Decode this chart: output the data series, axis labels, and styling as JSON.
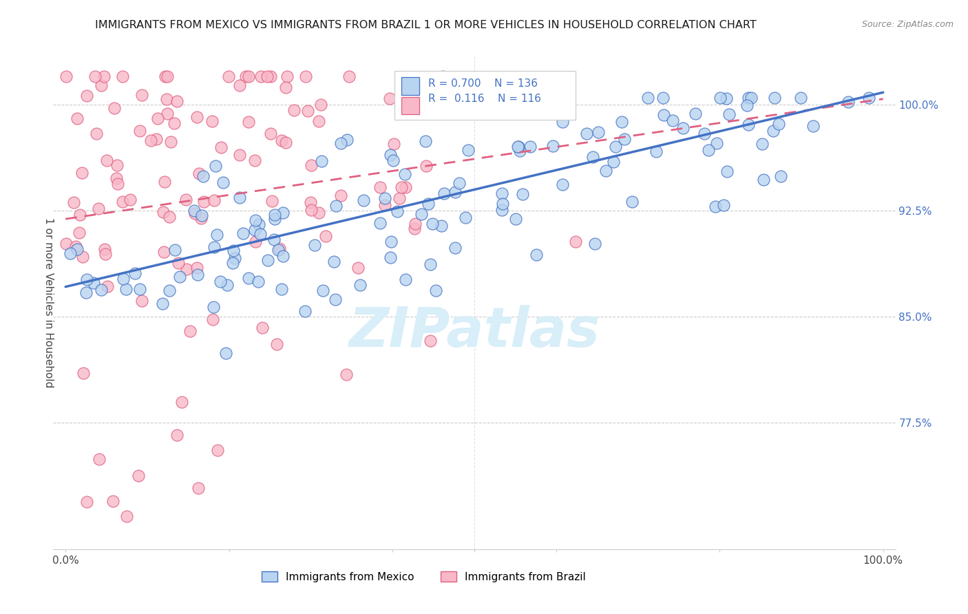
{
  "title": "IMMIGRANTS FROM MEXICO VS IMMIGRANTS FROM BRAZIL 1 OR MORE VEHICLES IN HOUSEHOLD CORRELATION CHART",
  "source": "Source: ZipAtlas.com",
  "ylabel": "1 or more Vehicles in Household",
  "yticks_labels": [
    "100.0%",
    "92.5%",
    "85.0%",
    "77.5%"
  ],
  "yticks_vals": [
    1.0,
    0.925,
    0.85,
    0.775
  ],
  "xlim": [
    -0.015,
    1.015
  ],
  "ylim": [
    0.685,
    1.035
  ],
  "legend_mexico": "Immigrants from Mexico",
  "legend_brazil": "Immigrants from Brazil",
  "R_mexico": "0.700",
  "N_mexico": "136",
  "R_brazil": "0.116",
  "N_brazil": "116",
  "color_mexico_fill": "#b8d4f0",
  "color_mexico_edge": "#4472c4",
  "color_brazil_fill": "#f8b8c8",
  "color_brazil_edge": "#e06080",
  "color_text_blue": "#4472c4",
  "color_grid": "#cccccc",
  "watermark_text": "ZIPatlas",
  "watermark_color": "#d8eef8",
  "background": "#ffffff",
  "title_fontsize": 11.5,
  "axis_fontsize": 11,
  "scatter_size": 150,
  "scatter_alpha": 0.8
}
